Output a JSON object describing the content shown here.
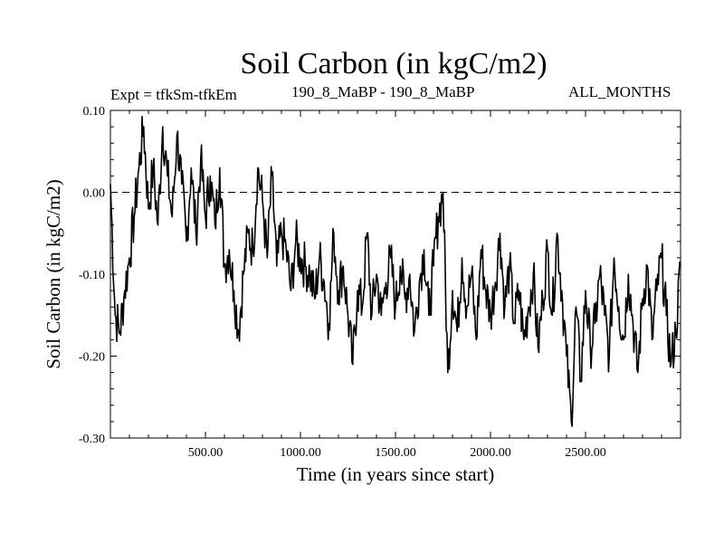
{
  "header": {
    "title": "Soil Carbon (in kgC/m2)",
    "expt": "Expt = tfkSm-tfkEm",
    "subtitle": "190_8_MaBP - 190_8_MaBP",
    "months": "ALL_MONTHS"
  },
  "colors": {
    "line": "#000000",
    "background": "#ffffff"
  },
  "chart_data": {
    "type": "line",
    "title": "Soil Carbon (in kgC/m2)",
    "xlabel": "Time (in years since start)",
    "ylabel": "Soil Carbon (in kgC/m2)",
    "xlim": [
      0,
      3000
    ],
    "ylim": [
      -0.3,
      0.1
    ],
    "x_ticks": [
      500,
      1000,
      1500,
      2000,
      2500
    ],
    "x_tick_labels": [
      "500.00",
      "1000.00",
      "1500.00",
      "2000.00",
      "2500.00"
    ],
    "y_ticks": [
      -0.3,
      -0.2,
      -0.1,
      0.0,
      0.1
    ],
    "y_tick_labels": [
      "-0.30",
      "-0.20",
      "-0.10",
      "0.00",
      "0.10"
    ],
    "reference_line": {
      "y": 0.0,
      "style": "dashed"
    },
    "series": [
      {
        "name": "Soil Carbon",
        "x": [
          0,
          25,
          50,
          75,
          100,
          125,
          150,
          175,
          200,
          225,
          250,
          275,
          300,
          325,
          350,
          375,
          400,
          425,
          450,
          475,
          500,
          525,
          550,
          575,
          600,
          625,
          650,
          675,
          700,
          725,
          750,
          775,
          800,
          825,
          850,
          875,
          900,
          925,
          950,
          975,
          1000,
          1025,
          1050,
          1075,
          1100,
          1125,
          1150,
          1175,
          1200,
          1225,
          1250,
          1275,
          1300,
          1325,
          1350,
          1375,
          1400,
          1425,
          1450,
          1475,
          1500,
          1525,
          1550,
          1575,
          1600,
          1625,
          1650,
          1675,
          1700,
          1725,
          1750,
          1775,
          1800,
          1825,
          1850,
          1875,
          1900,
          1925,
          1950,
          1975,
          2000,
          2025,
          2050,
          2075,
          2100,
          2125,
          2150,
          2175,
          2200,
          2225,
          2250,
          2275,
          2300,
          2325,
          2350,
          2375,
          2400,
          2425,
          2450,
          2475,
          2500,
          2525,
          2550,
          2575,
          2600,
          2625,
          2650,
          2675,
          2700,
          2725,
          2750,
          2775,
          2800,
          2825,
          2850,
          2875,
          2900,
          2925,
          2950,
          2975,
          3000
        ],
        "values": [
          0.01,
          -0.15,
          -0.17,
          -0.12,
          -0.08,
          -0.03,
          0.03,
          0.08,
          -0.02,
          0.03,
          -0.04,
          0.08,
          0.02,
          -0.03,
          0.07,
          0.01,
          -0.06,
          0.03,
          -0.05,
          0.04,
          -0.03,
          0.02,
          -0.04,
          0.03,
          -0.09,
          -0.07,
          -0.12,
          -0.17,
          -0.1,
          -0.05,
          -0.07,
          0.03,
          -0.01,
          -0.08,
          0.02,
          -0.09,
          -0.05,
          -0.07,
          -0.12,
          -0.06,
          -0.08,
          -0.09,
          -0.1,
          -0.13,
          -0.08,
          -0.11,
          -0.16,
          -0.05,
          -0.12,
          -0.09,
          -0.15,
          -0.21,
          -0.12,
          -0.14,
          -0.05,
          -0.15,
          -0.1,
          -0.15,
          -0.11,
          -0.08,
          -0.14,
          -0.09,
          -0.13,
          -0.1,
          -0.17,
          -0.11,
          -0.07,
          -0.15,
          -0.09,
          -0.03,
          0.0,
          -0.22,
          -0.12,
          -0.17,
          -0.08,
          -0.14,
          -0.1,
          -0.18,
          -0.07,
          -0.12,
          -0.15,
          -0.11,
          -0.05,
          -0.14,
          -0.09,
          -0.16,
          -0.12,
          -0.18,
          -0.14,
          -0.1,
          -0.19,
          -0.13,
          -0.07,
          -0.15,
          -0.05,
          -0.12,
          -0.2,
          -0.28,
          -0.14,
          -0.23,
          -0.12,
          -0.19,
          -0.16,
          -0.1,
          -0.15,
          -0.2,
          -0.08,
          -0.14,
          -0.18,
          -0.1,
          -0.16,
          -0.22,
          -0.13,
          -0.09,
          -0.18,
          -0.12,
          -0.08,
          -0.15,
          -0.21,
          -0.17,
          -0.09
        ]
      }
    ]
  }
}
